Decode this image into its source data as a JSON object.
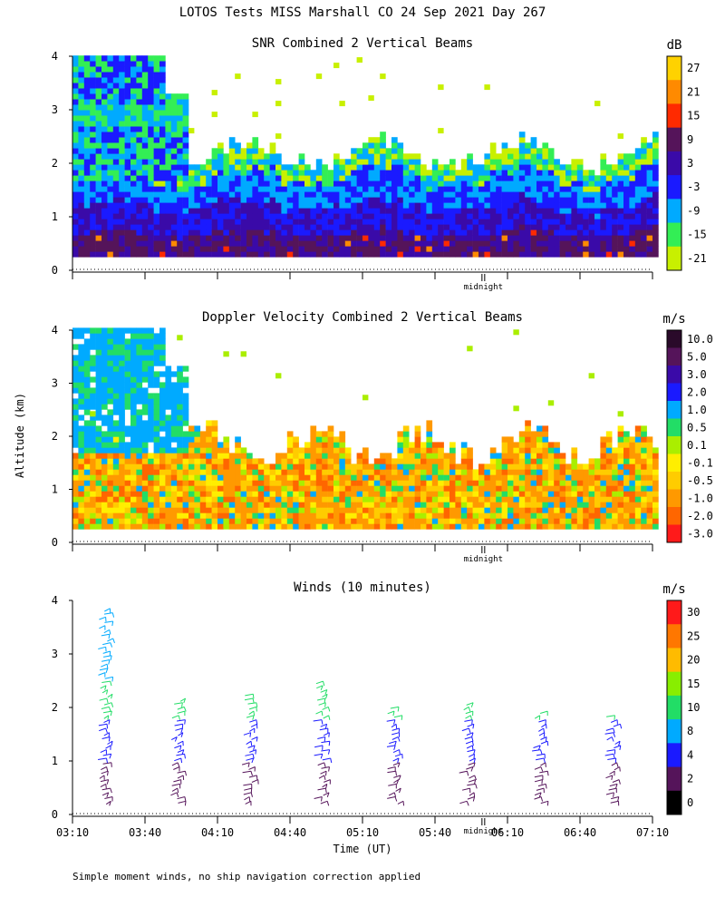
{
  "page_title": "LOTOS Tests MISS Marshall CO  24 Sep 2021 Day 267",
  "footnote": "Simple moment winds, no ship navigation correction applied",
  "ylabel": "Altitude (km)",
  "chart_data": [
    {
      "type": "heatmap",
      "title": "SNR Combined 2 Vertical Beams",
      "units": "dB",
      "ylim": [
        0,
        4
      ],
      "yticks": [
        0,
        1,
        2,
        3,
        4
      ],
      "xlim_minutes_since_0310": [
        0,
        240
      ],
      "marker_label": "midnight",
      "marker_minutes": 170,
      "colorbar": {
        "ticks": [
          "27",
          "21",
          "15",
          "9",
          "3",
          "-3",
          "-9",
          "-15",
          "-21"
        ],
        "colors": [
          "#ffd200",
          "#ff8a00",
          "#ff2a00",
          "#55145a",
          "#3a0aa8",
          "#1a1aff",
          "#00aaff",
          "#33ee55",
          "#c8f000"
        ]
      },
      "layers": [
        {
          "name": "surface_echo_top_km",
          "top_profile": [
            2.2,
            2.15,
            2.1,
            2.0,
            2.05,
            1.95,
            2.1,
            2.2,
            2.3,
            2.25,
            2.15,
            2.05,
            2.1,
            2.0,
            1.9,
            1.95,
            1.85,
            1.9,
            2.0,
            1.95,
            2.05,
            2.1
          ]
        },
        {
          "name": "upper_plume_top_km",
          "top_profile": [
            4.0,
            4.0,
            4.0,
            3.6,
            3.1
          ]
        }
      ]
    },
    {
      "type": "heatmap",
      "title": "Doppler Velocity Combined 2 Vertical Beams",
      "units": "m/s",
      "ylim": [
        0,
        4
      ],
      "yticks": [
        0,
        1,
        2,
        3,
        4
      ],
      "marker_label": "midnight",
      "marker_minutes": 170,
      "colorbar": {
        "ticks": [
          "10.0",
          "5.0",
          "3.0",
          "2.0",
          "1.0",
          "0.5",
          "0.1",
          "-0.1",
          "-0.5",
          "-1.0",
          "-2.0",
          "-3.0"
        ],
        "colors": [
          "#2a0a2a",
          "#55145a",
          "#3a0aa8",
          "#1a1aff",
          "#00aaff",
          "#22dd66",
          "#aaee00",
          "#ffee00",
          "#ffcc00",
          "#ff9900",
          "#ff6600",
          "#ff1a1a"
        ]
      }
    },
    {
      "type": "wind_barbs",
      "title": "Winds (10 minutes)",
      "units": "m/s",
      "ylim": [
        0,
        4
      ],
      "yticks": [
        0,
        1,
        2,
        3,
        4
      ],
      "xlabel": "Time (UT)",
      "xticks": [
        "03:10",
        "03:40",
        "04:10",
        "04:40",
        "05:10",
        "05:40",
        "06:10",
        "06:40",
        "07:10"
      ],
      "marker_label": "midnight",
      "marker_minutes": 170,
      "profiles_minutes": [
        15,
        45,
        75,
        105,
        135,
        165,
        195,
        225
      ],
      "profile_tops_km": [
        3.9,
        2.2,
        2.3,
        2.55,
        2.05,
        2.1,
        1.95,
        1.9
      ],
      "colorbar": {
        "ticks": [
          "30",
          "25",
          "20",
          "15",
          "10",
          "8",
          "4",
          "2",
          "0"
        ],
        "colors": [
          "#ff1a1a",
          "#ff7700",
          "#ffbb00",
          "#88ee00",
          "#22dd66",
          "#00aaff",
          "#1a1aff",
          "#55145a",
          "#000000"
        ]
      }
    }
  ]
}
